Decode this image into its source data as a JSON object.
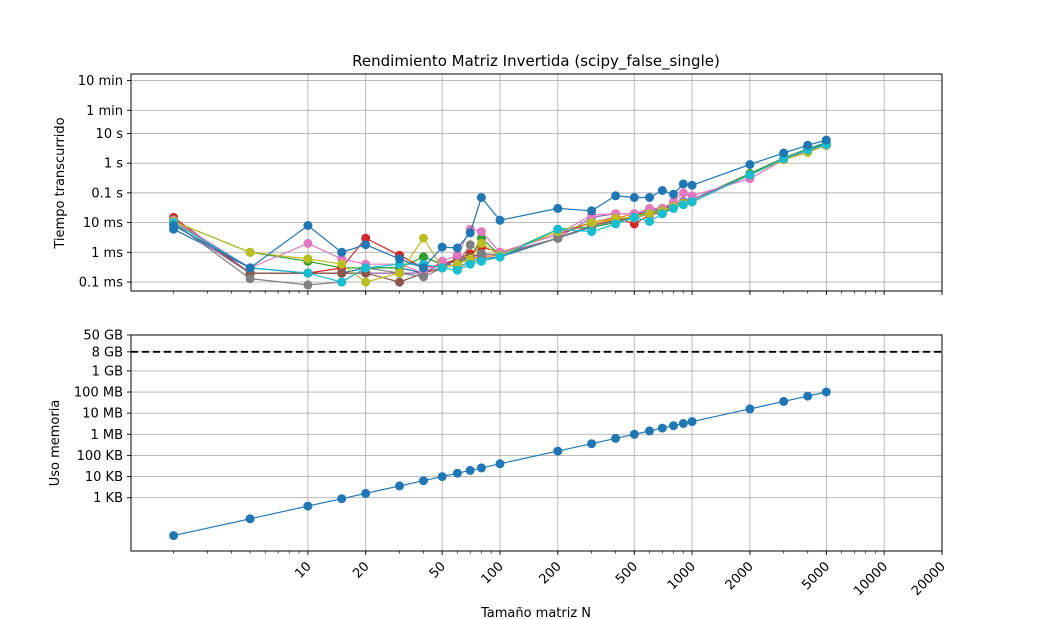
{
  "title": "Rendimiento Matriz Invertida (scipy_false_single)",
  "xlabel": "Tamaño matriz N",
  "chart_data": [
    {
      "type": "line",
      "title": "Rendimiento Matriz Invertida (scipy_false_single)",
      "xlabel": "",
      "ylabel": "Tiempo transcurrido",
      "xscale": "log",
      "yscale": "log",
      "grid": true,
      "x_ticks": [
        10,
        20,
        50,
        100,
        200,
        500,
        1000,
        2000,
        5000,
        10000,
        20000
      ],
      "y_ticks": [
        {
          "value": 0.0001,
          "label": "0.1 ms"
        },
        {
          "value": 0.001,
          "label": "1 ms"
        },
        {
          "value": 0.01,
          "label": "10 ms"
        },
        {
          "value": 0.1,
          "label": "0.1 s"
        },
        {
          "value": 1,
          "label": "1 s"
        },
        {
          "value": 10,
          "label": "10 s"
        },
        {
          "value": 60,
          "label": "1 min"
        },
        {
          "value": 600,
          "label": "10 min"
        }
      ],
      "ylim": [
        5e-05,
        1000
      ],
      "x": [
        2,
        5,
        10,
        15,
        20,
        30,
        40,
        50,
        60,
        70,
        80,
        100,
        200,
        300,
        400,
        500,
        600,
        700,
        800,
        900,
        1000,
        2000,
        3000,
        4000,
        5000
      ],
      "series": [
        {
          "color": "#1f77b4",
          "values": [
            0.006,
            0.0003,
            0.0002,
            0.0002,
            0.0003,
            0.0003,
            0.0002,
            0.0005,
            0.0003,
            0.0005,
            0.0006,
            0.0007,
            0.003,
            0.007,
            0.01,
            0.018,
            0.025,
            0.03,
            0.04,
            0.05,
            0.06,
            0.4,
            1.5,
            3,
            5
          ]
        },
        {
          "color": "#ff7f0e",
          "values": [
            0.012,
            0.0002,
            0.0002,
            0.0002,
            0.0002,
            0.0002,
            0.0002,
            0.0003,
            0.0004,
            0.0006,
            0.0007,
            0.0008,
            0.003,
            0.008,
            0.014,
            0.02,
            0.02,
            0.025,
            0.035,
            0.045,
            0.05,
            0.4,
            1.4,
            2.8,
            4.5
          ]
        },
        {
          "color": "#2ca02c",
          "values": [
            0.011,
            0.001,
            0.0005,
            0.0003,
            0.0003,
            0.0003,
            0.0007,
            0.0004,
            0.0005,
            0.0006,
            0.003,
            0.0008,
            0.006,
            0.007,
            0.01,
            0.018,
            0.02,
            0.03,
            0.04,
            0.05,
            0.06,
            0.45,
            1.5,
            3,
            4.5
          ]
        },
        {
          "color": "#d62728",
          "values": [
            0.015,
            0.0002,
            0.0002,
            0.0003,
            0.003,
            0.0008,
            0.0003,
            0.0004,
            0.0006,
            0.0009,
            0.0015,
            0.001,
            0.004,
            0.01,
            0.015,
            0.009,
            0.018,
            0.025,
            0.04,
            0.05,
            0.05,
            0.4,
            1.4,
            2.8,
            4
          ]
        },
        {
          "color": "#9467bd",
          "values": [
            0.009,
            0.0002,
            0.0002,
            0.0002,
            0.0002,
            0.0002,
            0.0002,
            0.0004,
            0.0005,
            0.0007,
            0.0008,
            0.0009,
            0.003,
            0.015,
            0.02,
            0.02,
            0.025,
            0.03,
            0.04,
            0.05,
            0.06,
            0.4,
            1.4,
            2.8,
            4.2
          ]
        },
        {
          "color": "#8c564b",
          "values": [
            0.013,
            0.0002,
            0.0002,
            0.0002,
            0.0002,
            0.0001,
            0.0002,
            0.0003,
            0.0006,
            0.0007,
            0.0009,
            0.0008,
            0.003,
            0.008,
            0.012,
            0.015,
            0.02,
            0.02,
            0.035,
            0.045,
            0.05,
            0.4,
            1.4,
            2.8,
            4
          ]
        },
        {
          "color": "#e377c2",
          "values": [
            0.012,
            0.0003,
            0.002,
            0.0006,
            0.0004,
            0.0004,
            0.0002,
            0.0005,
            0.0008,
            0.006,
            0.005,
            0.001,
            0.004,
            0.018,
            0.02,
            0.02,
            0.03,
            0.03,
            0.05,
            0.1,
            0.08,
            0.3,
            1.3,
            2.5,
            4
          ]
        },
        {
          "color": "#7f7f7f",
          "values": [
            0.01,
            0.00013,
            8e-05,
            0.0001,
            0.0003,
            0.0002,
            0.00015,
            0.0003,
            0.0004,
            0.0018,
            0.0009,
            0.0008,
            0.003,
            0.008,
            0.011,
            0.014,
            0.02,
            0.025,
            0.035,
            0.045,
            0.05,
            0.4,
            1.4,
            2.8,
            4
          ]
        },
        {
          "color": "#bcbd22",
          "values": [
            0.011,
            0.001,
            0.0006,
            0.0004,
            0.0001,
            0.0002,
            0.003,
            0.0003,
            0.0004,
            0.0006,
            0.002,
            0.0008,
            0.005,
            0.01,
            0.014,
            0.015,
            0.02,
            0.025,
            0.035,
            0.045,
            0.05,
            0.4,
            1.3,
            2.3,
            4
          ]
        },
        {
          "color": "#17becf",
          "values": [
            0.01,
            0.0003,
            0.0002,
            0.0001,
            0.0003,
            0.0004,
            0.0004,
            0.0003,
            0.00025,
            0.0004,
            0.0005,
            0.0007,
            0.006,
            0.005,
            0.009,
            0.015,
            0.011,
            0.02,
            0.03,
            0.04,
            0.05,
            0.4,
            1.4,
            2.8,
            4.2
          ]
        },
        {
          "color": "#1f77b4",
          "values": [
            0.008,
            0.0003,
            0.008,
            0.001,
            0.0018,
            0.0006,
            0.0003,
            0.0015,
            0.0014,
            0.0045,
            0.07,
            0.012,
            0.03,
            0.025,
            0.08,
            0.07,
            0.07,
            0.12,
            0.09,
            0.2,
            0.18,
            0.9,
            2.2,
            4,
            6
          ]
        }
      ]
    },
    {
      "type": "line",
      "title": "",
      "xlabel": "Tamaño matriz N",
      "ylabel": "Uso memoria",
      "xscale": "log",
      "yscale": "log",
      "grid": true,
      "x_ticks": [
        10,
        20,
        50,
        100,
        200,
        500,
        1000,
        2000,
        5000,
        10000,
        20000
      ],
      "y_ticks": [
        {
          "value": 1000,
          "label": "1 KB"
        },
        {
          "value": 10000,
          "label": "10 KB"
        },
        {
          "value": 100000,
          "label": "100 KB"
        },
        {
          "value": 1000000,
          "label": "1 MB"
        },
        {
          "value": 10000000,
          "label": "10 MB"
        },
        {
          "value": 100000000,
          "label": "100 MB"
        },
        {
          "value": 1000000000,
          "label": "1 GB"
        },
        {
          "value": 8000000000,
          "label": "8 GB"
        },
        {
          "value": 50000000000,
          "label": "50 GB"
        }
      ],
      "ylim": [
        3,
        50000000000
      ],
      "hline": {
        "value": 8000000000,
        "style": "dashed",
        "color": "#000000"
      },
      "x": [
        2,
        5,
        10,
        15,
        20,
        30,
        40,
        50,
        60,
        70,
        80,
        100,
        200,
        300,
        400,
        500,
        600,
        700,
        800,
        900,
        1000,
        2000,
        3000,
        4000,
        5000
      ],
      "series": [
        {
          "color": "#1f77b4",
          "values": [
            16,
            100,
            400,
            900,
            1600,
            3600,
            6400,
            10000,
            14400,
            19600,
            25600,
            40000,
            160000,
            360000,
            640000,
            1000000,
            1440000,
            1960000,
            2560000,
            3240000,
            4000000,
            16000000,
            36000000,
            64000000,
            100000000
          ]
        }
      ]
    }
  ]
}
